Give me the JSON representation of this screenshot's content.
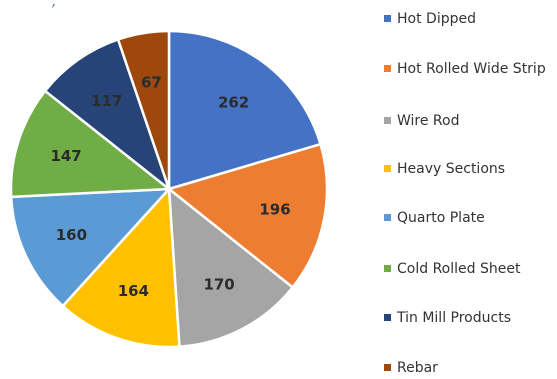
{
  "top_text": ", ",
  "chart_data": {
    "type": "pie",
    "categories": [
      "Hot Dipped",
      "Hot Rolled Wide Strip",
      "Wire Rod",
      "Heavy Sections",
      "Quarto Plate",
      "Cold Rolled Sheet",
      "Tin Mill Products",
      "Rebar"
    ],
    "values": [
      262,
      196,
      170,
      164,
      160,
      147,
      117,
      67
    ],
    "labels": [
      "262",
      "196",
      "170",
      "164",
      "160",
      "147",
      "117",
      "67"
    ],
    "colors": [
      "#4472c4",
      "#ed7d31",
      "#a5a5a5",
      "#ffc000",
      "#5b9bd5",
      "#70ad47",
      "#264478",
      "#9e480e"
    ],
    "legend_position": "right",
    "title": "",
    "legend": [
      {
        "label": "Hot Dipped",
        "color": "#4472c4"
      },
      {
        "label": "Hot Rolled Wide Strip",
        "color": "#ed7d31"
      },
      {
        "label": "Wire Rod",
        "color": "#a5a5a5"
      },
      {
        "label": "Heavy Sections",
        "color": "#ffc000"
      },
      {
        "label": "Quarto Plate",
        "color": "#5b9bd5"
      },
      {
        "label": "Cold Rolled Sheet",
        "color": "#70ad47"
      },
      {
        "label": "Tin Mill Products",
        "color": "#264478"
      },
      {
        "label": "Rebar",
        "color": "#9e480e"
      }
    ]
  }
}
